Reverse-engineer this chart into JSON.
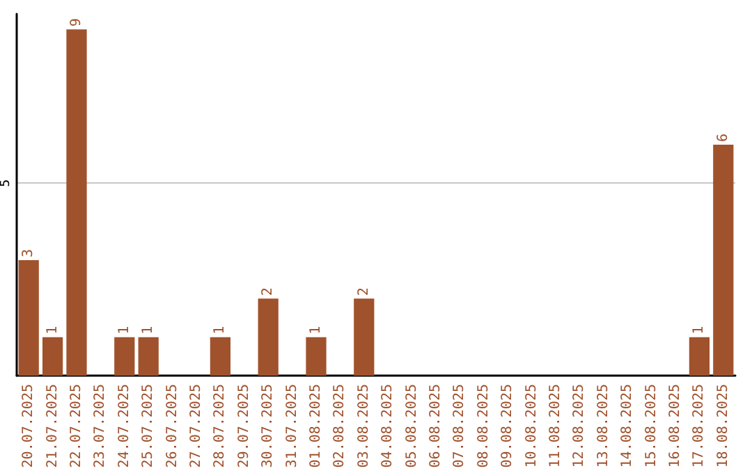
{
  "chart_data": {
    "type": "bar",
    "categories": [
      "20.07.2025",
      "21.07.2025",
      "22.07.2025",
      "23.07.2025",
      "24.07.2025",
      "25.07.2025",
      "26.07.2025",
      "27.07.2025",
      "28.07.2025",
      "29.07.2025",
      "30.07.2025",
      "31.07.2025",
      "01.08.2025",
      "02.08.2025",
      "03.08.2025",
      "04.08.2025",
      "05.08.2025",
      "06.08.2025",
      "07.08.2025",
      "08.08.2025",
      "09.08.2025",
      "10.08.2025",
      "11.08.2025",
      "12.08.2025",
      "13.08.2025",
      "14.08.2025",
      "15.08.2025",
      "16.08.2025",
      "17.08.2025",
      "18.08.2025"
    ],
    "values": [
      3,
      1,
      9,
      0,
      1,
      1,
      0,
      0,
      1,
      0,
      2,
      0,
      1,
      0,
      2,
      0,
      0,
      0,
      0,
      0,
      0,
      0,
      0,
      0,
      0,
      0,
      0,
      0,
      1,
      6
    ],
    "value_labels": [
      "3",
      "1",
      "9",
      null,
      "1",
      "1",
      null,
      null,
      "1",
      null,
      "2",
      null,
      "1",
      null,
      "2",
      null,
      null,
      null,
      null,
      null,
      null,
      null,
      null,
      null,
      null,
      null,
      null,
      null,
      "1",
      "6"
    ],
    "color": "#a0522d",
    "ylim": [
      0,
      9.4
    ],
    "yticks": [
      5
    ],
    "grid": "y"
  }
}
